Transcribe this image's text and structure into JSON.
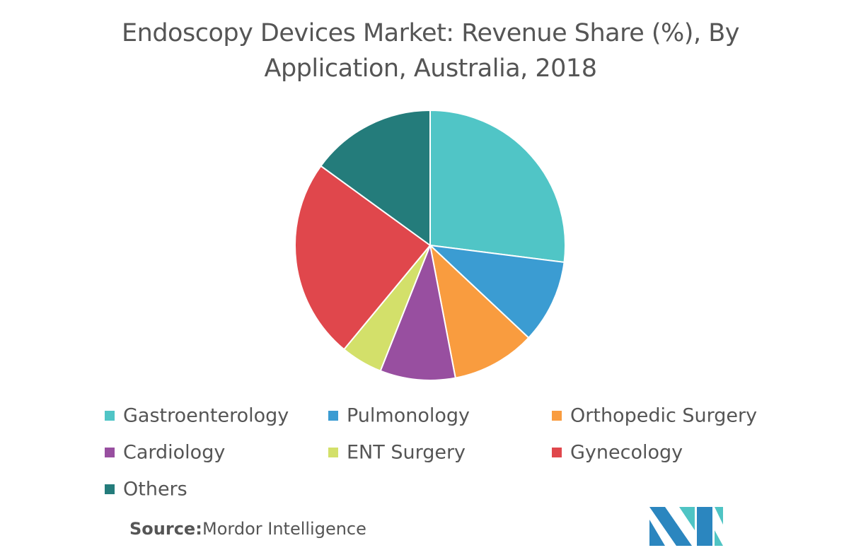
{
  "chart_data": {
    "type": "pie",
    "title": "Endoscopy Devices Market: Revenue Share (%), By Application, Australia, 2018",
    "categories": [
      "Gastroenterology",
      "Pulmonology",
      "Orthopedic Surgery",
      "Cardiology",
      "ENT Surgery",
      "Gynecology",
      "Others"
    ],
    "values": [
      27,
      10,
      10,
      9,
      5,
      24,
      15
    ],
    "colors": [
      "#50c5c6",
      "#3b9cd2",
      "#f99c3f",
      "#984fa0",
      "#d3e06a",
      "#e0474c",
      "#247c7b"
    ],
    "source_label": "Source:",
    "source": "Mordor Intelligence"
  }
}
